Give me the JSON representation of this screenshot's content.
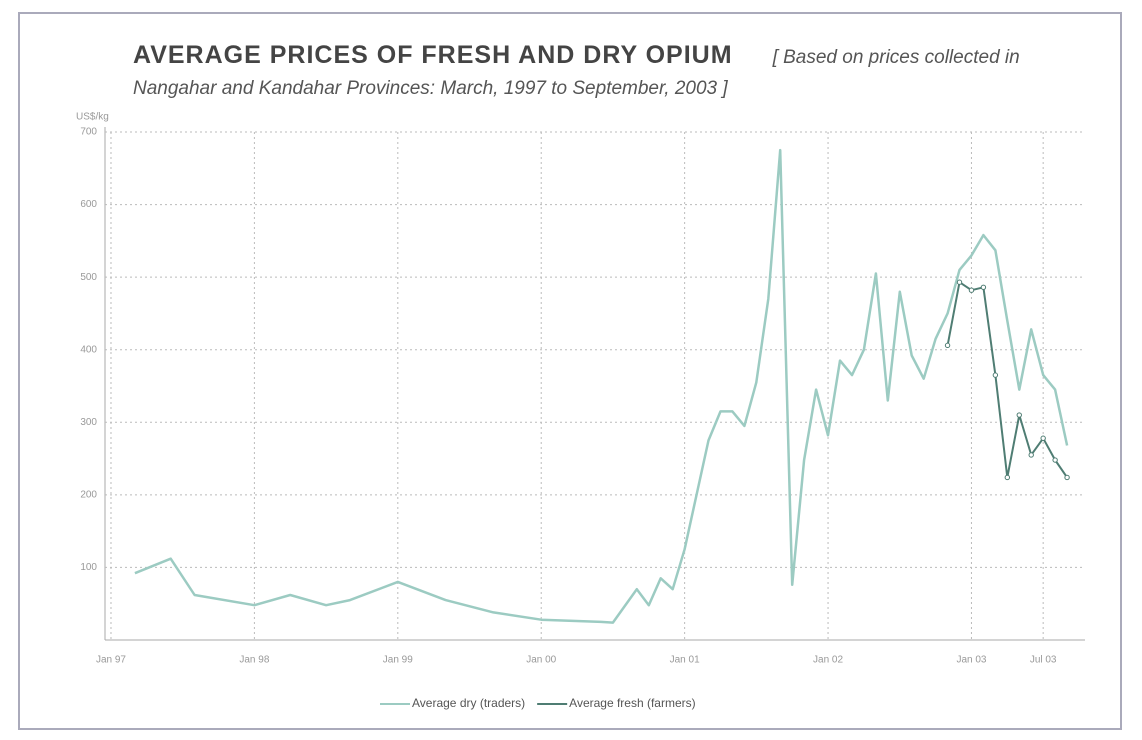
{
  "chart_data": {
    "type": "line",
    "title": "AVERAGE PRICES OF FRESH AND DRY OPIUM",
    "subtitle": "[ Based on prices collected in Nangahar and Kandahar Provinces: March, 1997 to September, 2003 ]",
    "y_label": "US$/kg",
    "xlim": [
      -0.5,
      81.5
    ],
    "xticks": [
      {
        "value": 0,
        "label": "Jan 97"
      },
      {
        "value": 12,
        "label": "Jan 98"
      },
      {
        "value": 24,
        "label": "Jan 99"
      },
      {
        "value": 36,
        "label": "Jan 00"
      },
      {
        "value": 48,
        "label": "Jan 01"
      },
      {
        "value": 60,
        "label": "Jan 02"
      },
      {
        "value": 72,
        "label": "Jan 03"
      },
      {
        "value": 78,
        "label": "Jul 03"
      }
    ],
    "ylim": [
      0,
      700
    ],
    "yticks": [
      100,
      200,
      300,
      400,
      500,
      600,
      700
    ],
    "grid": true,
    "series": [
      {
        "name": "Average dry (traders)",
        "color": "#9ccbc2",
        "x": [
          2,
          5,
          7,
          12,
          15,
          18,
          20,
          24,
          28,
          32,
          36,
          41,
          42,
          44,
          45,
          46,
          47,
          48,
          50,
          51,
          52,
          53,
          54,
          55,
          56,
          57,
          58,
          59,
          60,
          61,
          62,
          63,
          64,
          65,
          66,
          67,
          68,
          69,
          70,
          71,
          72,
          73,
          74,
          75,
          76,
          77,
          78,
          79,
          80
        ],
        "values": [
          92,
          112,
          62,
          48,
          62,
          48,
          55,
          80,
          55,
          38,
          28,
          25,
          24,
          70,
          48,
          85,
          70,
          125,
          275,
          315,
          315,
          295,
          355,
          470,
          675,
          76,
          248,
          345,
          282,
          385,
          365,
          400,
          505,
          330,
          480,
          392,
          360,
          415,
          450,
          510,
          530,
          558,
          537,
          440,
          345,
          428,
          365,
          345,
          268
        ]
      },
      {
        "name": "Average fresh (farmers)",
        "color": "#4f7d73",
        "x": [
          70,
          71,
          72,
          73,
          74,
          75,
          76,
          77,
          78,
          79,
          80
        ],
        "values": [
          406,
          493,
          482,
          486,
          365,
          224,
          310,
          255,
          278,
          248,
          224
        ]
      }
    ]
  }
}
